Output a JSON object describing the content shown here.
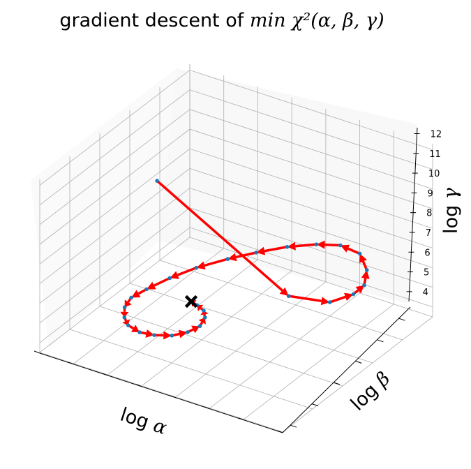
{
  "chart_data": {
    "type": "line3d",
    "title": {
      "prefix": "gradient descent of ",
      "math": "min χ²(α, β, γ)"
    },
    "xlabel": {
      "prefix": "log ",
      "math": "α"
    },
    "ylabel": {
      "prefix": "log ",
      "math": "β"
    },
    "zlabel": {
      "prefix": "log ",
      "math": "γ"
    },
    "zticks": [
      "4",
      "5",
      "6",
      "7",
      "8",
      "9",
      "10",
      "11",
      "12"
    ],
    "zlim": [
      3.5,
      12.3
    ],
    "grid": true,
    "path_color": "#ff0000",
    "point_color": "#1f77b4",
    "end_marker": {
      "symbol": "X",
      "color": "#000000"
    },
    "note": "Trajectory in (log α, log β, log γ); x and y tick labels not printed.",
    "points": [
      {
        "x": 0.1,
        "y": 0.62,
        "z": 9.0
      },
      {
        "x": 0.58,
        "y": 0.72,
        "z": 4.5
      },
      {
        "x": 0.7,
        "y": 0.8,
        "z": 4.2
      },
      {
        "x": 0.76,
        "y": 0.86,
        "z": 4.5
      },
      {
        "x": 0.78,
        "y": 0.9,
        "z": 4.8
      },
      {
        "x": 0.76,
        "y": 0.95,
        "z": 5.2
      },
      {
        "x": 0.7,
        "y": 1.0,
        "z": 5.5
      },
      {
        "x": 0.62,
        "y": 1.0,
        "z": 5.6
      },
      {
        "x": 0.54,
        "y": 0.97,
        "z": 5.5
      },
      {
        "x": 0.45,
        "y": 0.92,
        "z": 5.3
      },
      {
        "x": 0.36,
        "y": 0.86,
        "z": 5.0
      },
      {
        "x": 0.28,
        "y": 0.8,
        "z": 4.7
      },
      {
        "x": 0.2,
        "y": 0.72,
        "z": 4.4
      },
      {
        "x": 0.14,
        "y": 0.64,
        "z": 4.1
      },
      {
        "x": 0.1,
        "y": 0.55,
        "z": 3.9
      },
      {
        "x": 0.08,
        "y": 0.48,
        "z": 3.8
      },
      {
        "x": 0.09,
        "y": 0.42,
        "z": 3.7
      },
      {
        "x": 0.12,
        "y": 0.37,
        "z": 3.6
      },
      {
        "x": 0.16,
        "y": 0.33,
        "z": 3.6
      },
      {
        "x": 0.22,
        "y": 0.31,
        "z": 3.6
      },
      {
        "x": 0.28,
        "y": 0.31,
        "z": 3.7
      },
      {
        "x": 0.34,
        "y": 0.33,
        "z": 3.8
      },
      {
        "x": 0.38,
        "y": 0.37,
        "z": 3.9
      },
      {
        "x": 0.4,
        "y": 0.42,
        "z": 4.0
      },
      {
        "x": 0.39,
        "y": 0.47,
        "z": 4.1
      },
      {
        "x": 0.36,
        "y": 0.51,
        "z": 4.1
      },
      {
        "x": 0.32,
        "y": 0.53,
        "z": 4.1
      },
      {
        "x": 0.29,
        "y": 0.54,
        "z": 4.1
      }
    ]
  }
}
